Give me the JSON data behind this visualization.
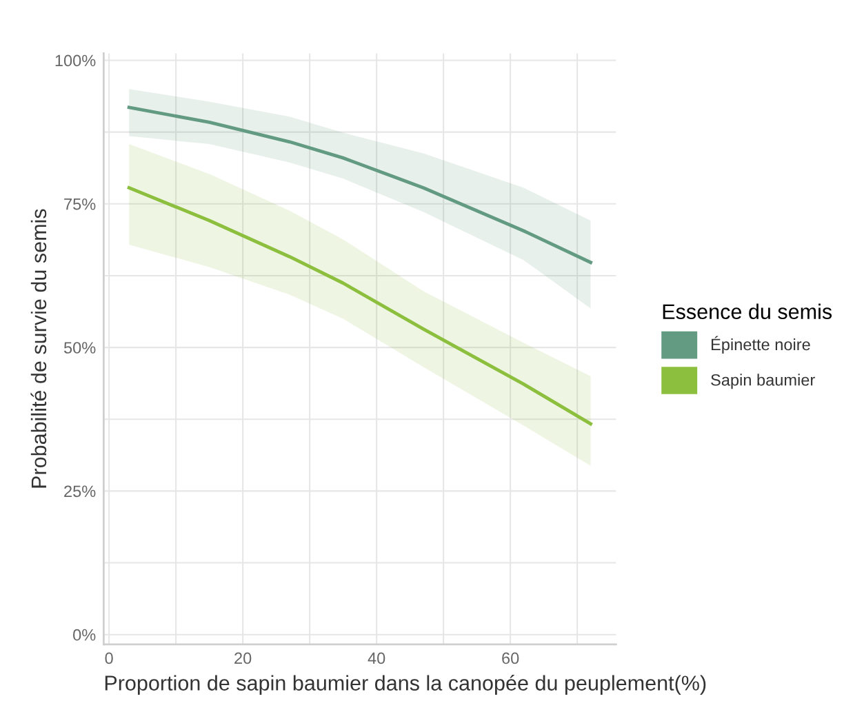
{
  "chart_data": {
    "type": "line",
    "xlabel": "Proportion de sapin baumier dans la canopée du peuplement(%)",
    "ylabel": "Probabilité de survie du semis",
    "legend_title": "Essence du semis",
    "legend": "right",
    "grid": true,
    "line_style": "solid",
    "marker": "none",
    "xlim": [
      -0.8,
      75.8
    ],
    "ylim": [
      -1.7,
      101.2
    ],
    "xticks": [
      0,
      {
        "value": 10,
        "label": null
      },
      20,
      {
        "value": 30,
        "label": null
      },
      40,
      {
        "value": 50,
        "label": null
      },
      60,
      {
        "value": 70,
        "label": null
      }
    ],
    "yticks": [
      {
        "value": 0,
        "label": "0%"
      },
      {
        "value": 12.5,
        "label": null
      },
      {
        "value": 25,
        "label": "25%"
      },
      {
        "value": 37.5,
        "label": null
      },
      {
        "value": 50,
        "label": "50%"
      },
      {
        "value": 62.5,
        "label": null
      },
      {
        "value": 75,
        "label": "75%"
      },
      {
        "value": 87.5,
        "label": null
      },
      {
        "value": 100,
        "label": "100%"
      }
    ],
    "x": [
      3,
      15,
      27,
      35,
      47,
      62,
      72
    ],
    "series": [
      {
        "name": "Épinette noire",
        "color": "#639a82",
        "values": [
          91.8,
          89.2,
          85.8,
          83.0,
          77.8,
          70.3,
          64.8
        ],
        "lower": [
          86.8,
          85.4,
          82.2,
          79.4,
          73.6,
          65.2,
          56.8
        ],
        "upper": [
          95.0,
          92.8,
          90.2,
          87.4,
          83.8,
          77.8,
          72.1
        ]
      },
      {
        "name": "Sapin baumier",
        "color": "#8dbf3e",
        "values": [
          77.8,
          72.1,
          65.8,
          61.2,
          53.2,
          43.6,
          36.7
        ],
        "lower": [
          67.9,
          64.0,
          59.2,
          55.0,
          46.6,
          36.4,
          29.4
        ],
        "upper": [
          85.4,
          80.2,
          73.8,
          68.8,
          59.8,
          50.8,
          45.0
        ]
      }
    ]
  }
}
